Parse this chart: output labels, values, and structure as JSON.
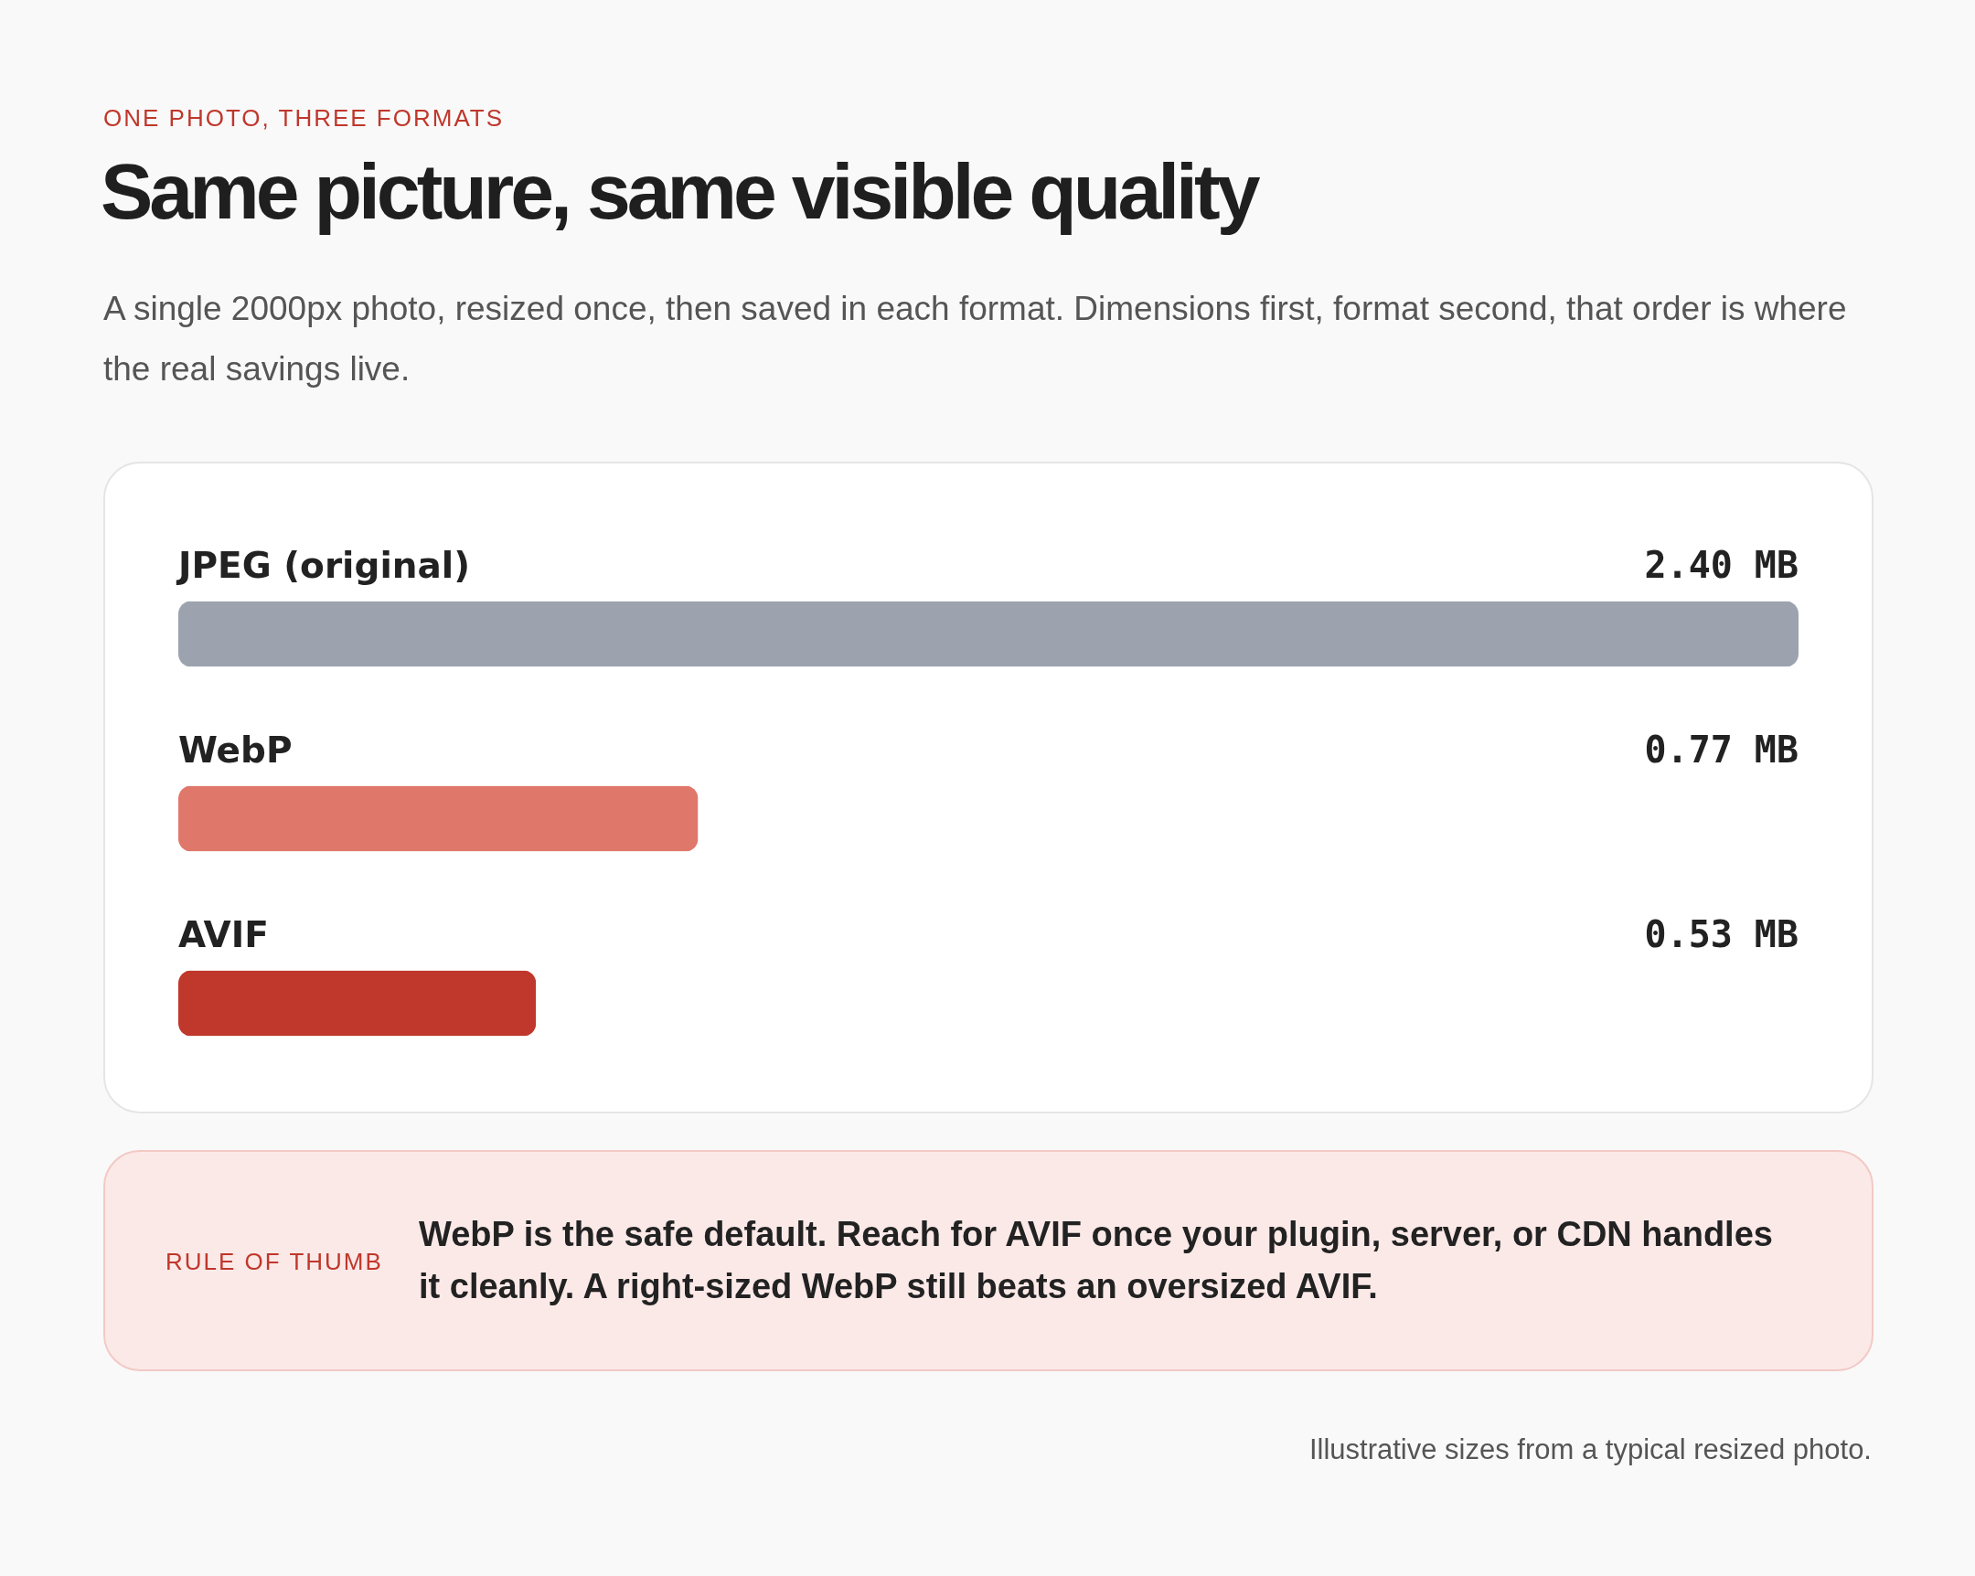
{
  "chart_data": {
    "type": "bar",
    "orientation": "horizontal",
    "title": "Same picture, same visible quality",
    "subtitle": "A single 2000px photo, resized once, then saved in each format. Dimensions first, format second, that order is where the real savings live.",
    "categories": [
      "JPEG (original)",
      "WebP",
      "AVIF"
    ],
    "values": [
      2.4,
      0.77,
      0.53
    ],
    "colors": [
      "#9ca3af",
      "#e0776b",
      "#c0372b"
    ],
    "value_labels": [
      "2.40 MB",
      "0.77 MB",
      "0.53 MB"
    ],
    "annotations": [
      "ONE PHOTO, THREE FORMATS",
      "RULE OF THUMB",
      "WebP is the safe default. Reach for AVIF once your plugin, server, or CDN handles it cleanly. A right-sized WebP still beats an oversized AVIF.",
      "Illustrative sizes from a typical resized photo."
    ]
  }
}
